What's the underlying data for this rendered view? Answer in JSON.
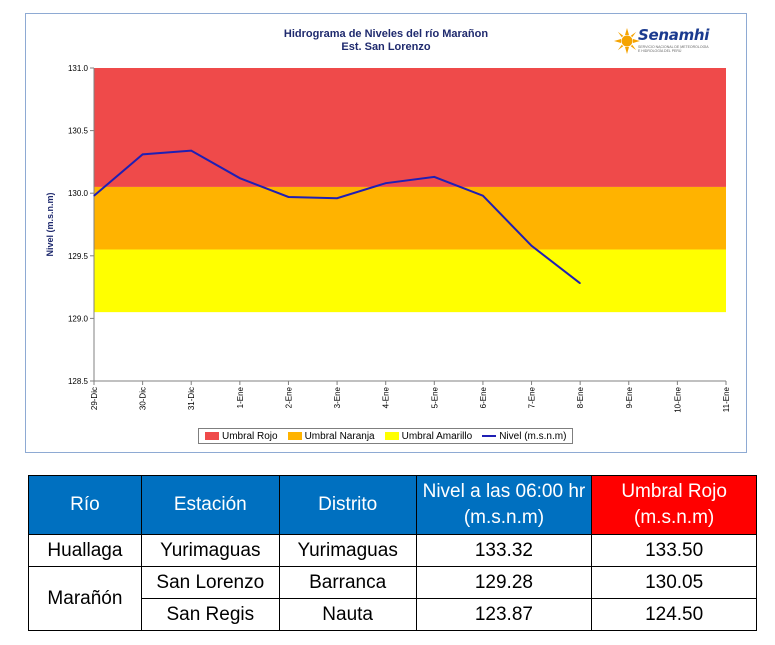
{
  "chart_data": {
    "type": "line",
    "title": "Hidrograma de Niveles del río Marañon",
    "subtitle": "Est. San Lorenzo",
    "ylabel": "Nivel (m.s.n.m)",
    "xlabel": "",
    "ylim": [
      128.5,
      131.0
    ],
    "yticks": [
      "128.5",
      "129.0",
      "129.5",
      "130.0",
      "130.5",
      "131.0"
    ],
    "categories": [
      "29-Dic",
      "30-Dic",
      "31-Dic",
      "1-Ene",
      "2-Ene",
      "3-Ene",
      "4-Ene",
      "5-Ene",
      "6-Ene",
      "7-Ene",
      "8-Ene",
      "9-Ene",
      "10-Ene",
      "11-Ene"
    ],
    "bands": [
      {
        "name": "Umbral Rojo",
        "from": 130.05,
        "to": 131.0,
        "color": "#ef4a4a"
      },
      {
        "name": "Umbral Naranja",
        "from": 129.55,
        "to": 130.05,
        "color": "#ffb300"
      },
      {
        "name": "Umbral Amarillo",
        "from": 129.05,
        "to": 129.55,
        "color": "#ffff00"
      }
    ],
    "series": [
      {
        "name": "Nivel (m.s.n.m)",
        "color": "#1f1fb4",
        "values": [
          129.98,
          130.31,
          130.34,
          130.12,
          129.97,
          129.96,
          130.08,
          130.13,
          129.98,
          129.58,
          129.28,
          null,
          null,
          null
        ]
      }
    ],
    "grid": false,
    "legend_position": "bottom"
  },
  "logo": {
    "text": "Senamhi",
    "tagline": "SERVICIO NACIONAL DE METEOROLOGÍA E HIDROLOGÍA DEL PERÚ"
  },
  "table": {
    "headers": [
      "Río",
      "Estación",
      "Distrito",
      "Nivel a las 06:00 hr  (m.s.n.m)",
      "Umbral Rojo (m.s.n.m)"
    ],
    "rows": [
      {
        "rio": "Huallaga",
        "estacion": "Yurimaguas",
        "distrito": "Yurimaguas",
        "nivel": "133.32",
        "umbral": "133.50"
      },
      {
        "rio": "Marañón",
        "estacion": "San Lorenzo",
        "distrito": "Barranca",
        "nivel": "129.28",
        "umbral": "130.05"
      },
      {
        "rio": "Marañón",
        "estacion": "San Regis",
        "distrito": "Nauta",
        "nivel": "123.87",
        "umbral": "124.50"
      }
    ]
  }
}
